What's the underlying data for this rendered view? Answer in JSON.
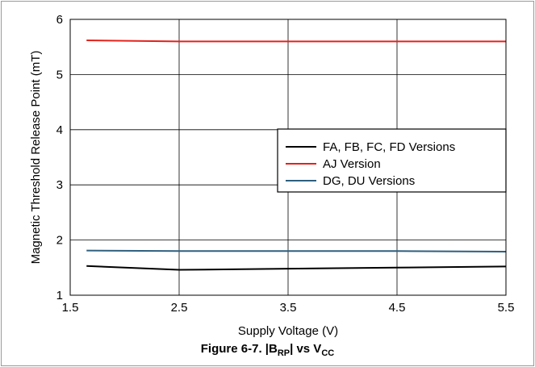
{
  "chart_data": {
    "type": "line",
    "xlabel": "Supply Voltage (V)",
    "ylabel": "Magnetic Threshold Release Point (mT)",
    "xlim": [
      1.5,
      5.5
    ],
    "ylim": [
      1,
      6
    ],
    "x_ticks": [
      "1.5",
      "2.5",
      "3.5",
      "4.5",
      "5.5"
    ],
    "y_ticks": [
      "1",
      "2",
      "3",
      "4",
      "5",
      "6"
    ],
    "grid": true,
    "legend_position": "center-right",
    "series": [
      {
        "name": "FA, FB, FC, FD Versions",
        "color": "#000000",
        "x": [
          1.65,
          2.5,
          3.5,
          4.5,
          5.5
        ],
        "y": [
          1.53,
          1.46,
          1.48,
          1.5,
          1.52
        ]
      },
      {
        "name": "AJ Version",
        "color": "#e3221c",
        "x": [
          1.65,
          2.5,
          3.5,
          4.5,
          5.5
        ],
        "y": [
          5.62,
          5.6,
          5.6,
          5.6,
          5.6
        ]
      },
      {
        "name": "DG, DU Versions",
        "color": "#2f5f7f",
        "x": [
          1.65,
          2.5,
          3.5,
          4.5,
          5.5
        ],
        "y": [
          1.81,
          1.8,
          1.8,
          1.8,
          1.79
        ]
      }
    ]
  },
  "caption": {
    "prefix": "Figure 6-7. |B",
    "sub1": "RP",
    "middle": "| vs V",
    "sub2": "CC"
  }
}
